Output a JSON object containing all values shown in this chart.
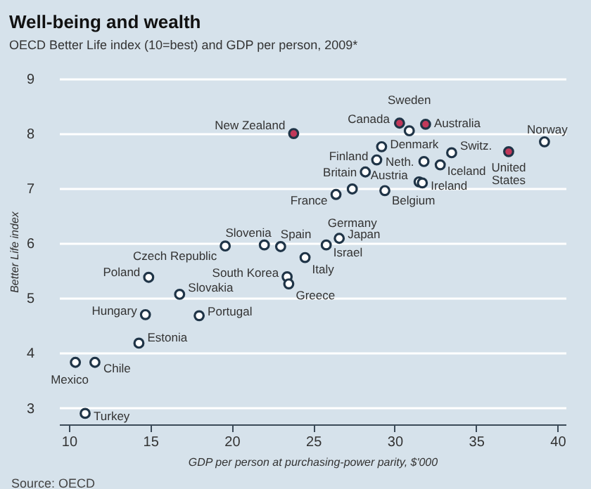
{
  "chart_data": {
    "type": "scatter",
    "title": "Well-being and wealth",
    "subtitle": "OECD Better Life index (10=best) and GDP per person, 2009*",
    "xlabel": "GDP per person at purchasing-power parity, $'000",
    "ylabel": "Better Life index",
    "xlim": [
      9.4,
      40.5
    ],
    "ylim": [
      2.7,
      9
    ],
    "xticks": [
      10,
      15,
      20,
      25,
      30,
      35,
      40
    ],
    "yticks": [
      3,
      4,
      5,
      6,
      7,
      8,
      9
    ],
    "grid": "y",
    "legend": false,
    "marker": "circle",
    "series": [
      {
        "color": "#ffffff",
        "x": [
          30.9,
          29.2,
          33.5,
          39.2,
          28.9,
          31.8,
          32.8,
          28.2,
          31.5,
          31.7,
          27.4,
          26.4,
          29.4,
          19.6,
          22.0,
          23.0,
          26.6,
          25.8,
          23.4,
          24.5,
          23.5,
          14.9,
          16.8,
          14.7,
          18.0,
          14.3,
          10.4,
          11.6,
          11.0
        ],
        "values": [
          8.05,
          7.76,
          7.65,
          7.85,
          7.52,
          7.49,
          7.43,
          7.3,
          7.12,
          7.1,
          6.99,
          6.89,
          6.96,
          5.95,
          5.97,
          5.94,
          6.09,
          5.97,
          5.39,
          5.74,
          5.26,
          5.38,
          5.07,
          4.7,
          4.68,
          4.18,
          3.83,
          3.83,
          2.9
        ]
      },
      {
        "color": "#c2385a",
        "x": [
          23.8,
          30.3,
          31.9,
          37.0
        ],
        "values": [
          8.0,
          8.19,
          8.17,
          7.67
        ]
      }
    ],
    "annotations": [
      {
        "text": "New Zealand",
        "x": 23.8,
        "y": 8.0
      },
      {
        "text": "Canada",
        "x": 30.3,
        "y": 8.19
      },
      {
        "text": "Sweden",
        "x": 30.9,
        "y": 8.05
      },
      {
        "text": "Australia",
        "x": 31.9,
        "y": 8.17
      },
      {
        "text": "Denmark",
        "x": 29.2,
        "y": 7.76
      },
      {
        "text": "Switz.",
        "x": 33.5,
        "y": 7.65
      },
      {
        "text": "Norway",
        "x": 39.2,
        "y": 7.85
      },
      {
        "text": "United States",
        "x": 37.0,
        "y": 7.67
      },
      {
        "text": "Finland",
        "x": 28.9,
        "y": 7.52
      },
      {
        "text": "Neth.",
        "x": 31.8,
        "y": 7.49
      },
      {
        "text": "Iceland",
        "x": 32.8,
        "y": 7.43
      },
      {
        "text": "Britain",
        "x": 28.2,
        "y": 7.3
      },
      {
        "text": "Austria",
        "x": 31.5,
        "y": 7.12
      },
      {
        "text": "Ireland",
        "x": 31.7,
        "y": 7.1
      },
      {
        "text": "France",
        "x": 26.4,
        "y": 6.89
      },
      {
        "text": "Germany",
        "x": 27.4,
        "y": 6.99
      },
      {
        "text": "Belgium",
        "x": 29.4,
        "y": 6.96
      },
      {
        "text": "Czech Republic",
        "x": 19.6,
        "y": 5.95
      },
      {
        "text": "Slovenia",
        "x": 22.0,
        "y": 5.97
      },
      {
        "text": "Spain",
        "x": 23.0,
        "y": 5.94
      },
      {
        "text": "Japan",
        "x": 26.6,
        "y": 6.09
      },
      {
        "text": "Israel",
        "x": 25.8,
        "y": 5.97
      },
      {
        "text": "South Korea",
        "x": 23.4,
        "y": 5.39
      },
      {
        "text": "Italy",
        "x": 24.5,
        "y": 5.74
      },
      {
        "text": "Greece",
        "x": 23.5,
        "y": 5.26
      },
      {
        "text": "Poland",
        "x": 14.9,
        "y": 5.38
      },
      {
        "text": "Slovakia",
        "x": 16.8,
        "y": 5.07
      },
      {
        "text": "Hungary",
        "x": 14.7,
        "y": 4.7
      },
      {
        "text": "Portugal",
        "x": 18.0,
        "y": 4.68
      },
      {
        "text": "Estonia",
        "x": 14.3,
        "y": 4.18
      },
      {
        "text": "Mexico",
        "x": 10.4,
        "y": 3.83
      },
      {
        "text": "Chile",
        "x": 11.6,
        "y": 3.83
      },
      {
        "text": "Turkey",
        "x": 11.0,
        "y": 2.9
      },
      "Source: OECD"
    ]
  }
}
